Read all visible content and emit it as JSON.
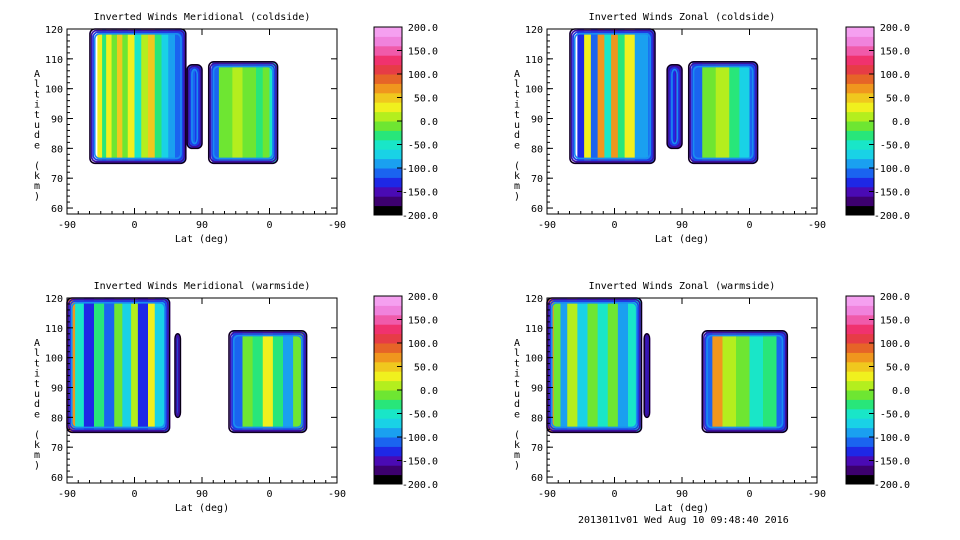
{
  "colorbar": {
    "labels": [
      "200.0",
      "150.0",
      "100.0",
      "50.0",
      "0.0",
      "-50.0",
      "-100.0",
      "-150.0",
      "-200.0"
    ],
    "colors": [
      "#000000",
      "#3c006e",
      "#4a0ab4",
      "#1e28e6",
      "#1a64f0",
      "#1aa0f0",
      "#19d2e6",
      "#19e6c8",
      "#28e67a",
      "#6ee632",
      "#b4ee1e",
      "#f0f01e",
      "#f0c81e",
      "#f0961e",
      "#e66428",
      "#e63c46",
      "#f0326e",
      "#f05aaa",
      "#f082dc",
      "#f5a0f0"
    ]
  },
  "footer": "2013011v01 Wed Aug 10 09:48:40 2016",
  "chart_data": [
    {
      "type": "heatmap",
      "title": "Inverted Winds Meridional (coldside)",
      "xlabel": "Lat (deg)",
      "ylabel": "Altitude (km)",
      "x_ticks": [
        "-90",
        "0",
        "90",
        "0",
        "-90"
      ],
      "y_ticks": [
        "60",
        "70",
        "80",
        "90",
        "100",
        "110",
        "120"
      ],
      "ylim": [
        58,
        120
      ],
      "zlim": [
        -200,
        200
      ],
      "blocks": [
        {
          "x0": 0.34,
          "x1": 1.76,
          "top": 120,
          "bottom": 75
        },
        {
          "x0": 1.78,
          "x1": 2.0,
          "top": 108,
          "bottom": 80
        },
        {
          "x0": 2.1,
          "x1": 3.12,
          "top": 109,
          "bottom": 75
        }
      ],
      "fields": [
        {
          "x0": 0.34,
          "x1": 2.0,
          "bands": [
            [
              0.45,
              25
            ],
            [
              0.52,
              -30
            ],
            [
              0.58,
              30
            ],
            [
              0.66,
              -10
            ],
            [
              0.74,
              45
            ],
            [
              0.82,
              -20
            ],
            [
              0.9,
              35
            ],
            [
              1.0,
              -60
            ],
            [
              1.1,
              0
            ],
            [
              1.2,
              40
            ],
            [
              1.3,
              -40
            ],
            [
              1.4,
              -80
            ],
            [
              1.5,
              -95
            ],
            [
              1.6,
              -110
            ],
            [
              1.7,
              -120
            ],
            [
              1.9,
              -140
            ]
          ]
        },
        {
          "x0": 2.1,
          "x1": 3.12,
          "bands": [
            [
              2.15,
              -120
            ],
            [
              2.25,
              -20
            ],
            [
              2.35,
              -5
            ],
            [
              2.45,
              5
            ],
            [
              2.6,
              -15
            ],
            [
              2.8,
              -40
            ],
            [
              2.9,
              -10
            ],
            [
              3.0,
              -60
            ],
            [
              3.1,
              -90
            ]
          ]
        }
      ]
    },
    {
      "type": "heatmap",
      "title": "Inverted Winds Zonal (coldside)",
      "xlabel": "Lat (deg)",
      "ylabel": "Altitude (km)",
      "x_ticks": [
        "-90",
        "0",
        "90",
        "0",
        "-90"
      ],
      "y_ticks": [
        "60",
        "70",
        "80",
        "90",
        "100",
        "110",
        "120"
      ],
      "ylim": [
        58,
        120
      ],
      "zlim": [
        -200,
        200
      ],
      "blocks": [
        {
          "x0": 0.34,
          "x1": 1.6,
          "top": 120,
          "bottom": 75
        },
        {
          "x0": 1.78,
          "x1": 2.0,
          "top": 108,
          "bottom": 80
        },
        {
          "x0": 2.1,
          "x1": 3.12,
          "top": 109,
          "bottom": 75
        }
      ],
      "fields": [
        {
          "x0": 0.34,
          "x1": 2.0,
          "bands": [
            [
              0.45,
              -130
            ],
            [
              0.55,
              20
            ],
            [
              0.65,
              -120
            ],
            [
              0.75,
              60
            ],
            [
              0.85,
              -60
            ],
            [
              0.95,
              70
            ],
            [
              1.05,
              -30
            ],
            [
              1.15,
              30
            ],
            [
              1.3,
              -90
            ],
            [
              1.5,
              -110
            ],
            [
              1.7,
              -140
            ],
            [
              1.9,
              -150
            ]
          ]
        },
        {
          "x0": 2.1,
          "x1": 3.12,
          "bands": [
            [
              2.15,
              -110
            ],
            [
              2.3,
              -10
            ],
            [
              2.5,
              0
            ],
            [
              2.7,
              -30
            ],
            [
              2.85,
              -70
            ],
            [
              3.0,
              -110
            ],
            [
              3.1,
              -120
            ]
          ]
        }
      ]
    },
    {
      "type": "heatmap",
      "title": "Inverted Winds Meridional (warmside)",
      "xlabel": "Lat (deg)",
      "ylabel": "Altitude (km)",
      "x_ticks": [
        "-90",
        "0",
        "90",
        "0",
        "-90"
      ],
      "y_ticks": [
        "60",
        "70",
        "80",
        "90",
        "100",
        "110",
        "120"
      ],
      "ylim": [
        58,
        120
      ],
      "zlim": [
        -200,
        200
      ],
      "blocks": [
        {
          "x0": 0,
          "x1": 1.52,
          "top": 120,
          "bottom": 75
        },
        {
          "x0": 1.6,
          "x1": 1.68,
          "top": 108,
          "bottom": 80
        },
        {
          "x0": 2.4,
          "x1": 3.55,
          "top": 109,
          "bottom": 75
        }
      ],
      "fields": [
        {
          "x0": 0,
          "x1": 1.68,
          "bands": [
            [
              0.0,
              60
            ],
            [
              0.12,
              -60
            ],
            [
              0.25,
              -130
            ],
            [
              0.4,
              -40
            ],
            [
              0.55,
              -110
            ],
            [
              0.7,
              -10
            ],
            [
              0.82,
              -80
            ],
            [
              0.95,
              10
            ],
            [
              1.05,
              -140
            ],
            [
              1.2,
              30
            ],
            [
              1.3,
              -70
            ],
            [
              1.45,
              -110
            ],
            [
              1.65,
              -140
            ]
          ]
        },
        {
          "x0": 2.4,
          "x1": 3.55,
          "bands": [
            [
              2.45,
              -110
            ],
            [
              2.6,
              -5
            ],
            [
              2.75,
              -30
            ],
            [
              2.9,
              20
            ],
            [
              3.05,
              -40
            ],
            [
              3.2,
              -90
            ],
            [
              3.35,
              -20
            ],
            [
              3.5,
              -120
            ]
          ]
        }
      ]
    },
    {
      "type": "heatmap",
      "title": "Inverted Winds Zonal (warmside)",
      "xlabel": "Lat (deg)",
      "ylabel": "Altitude (km)",
      "x_ticks": [
        "-90",
        "0",
        "90",
        "0",
        "-90"
      ],
      "y_ticks": [
        "60",
        "70",
        "80",
        "90",
        "100",
        "110",
        "120"
      ],
      "ylim": [
        58,
        120
      ],
      "zlim": [
        -200,
        200
      ],
      "blocks": [
        {
          "x0": 0,
          "x1": 1.4,
          "top": 120,
          "bottom": 75
        },
        {
          "x0": 1.44,
          "x1": 1.52,
          "top": 108,
          "bottom": 80
        },
        {
          "x0": 2.3,
          "x1": 3.56,
          "top": 109,
          "bottom": 75
        }
      ],
      "fields": [
        {
          "x0": 0,
          "x1": 1.52,
          "bands": [
            [
              0.0,
              70
            ],
            [
              0.1,
              -20
            ],
            [
              0.2,
              -100
            ],
            [
              0.3,
              10
            ],
            [
              0.45,
              -80
            ],
            [
              0.6,
              -20
            ],
            [
              0.75,
              -50
            ],
            [
              0.9,
              -10
            ],
            [
              1.05,
              -100
            ],
            [
              1.2,
              -60
            ],
            [
              1.4,
              -140
            ]
          ]
        },
        {
          "x0": 2.3,
          "x1": 3.56,
          "bands": [
            [
              2.35,
              -110
            ],
            [
              2.45,
              60
            ],
            [
              2.6,
              0
            ],
            [
              2.8,
              -20
            ],
            [
              3.0,
              -60
            ],
            [
              3.2,
              -40
            ],
            [
              3.4,
              -110
            ],
            [
              3.55,
              -130
            ]
          ]
        }
      ]
    }
  ]
}
